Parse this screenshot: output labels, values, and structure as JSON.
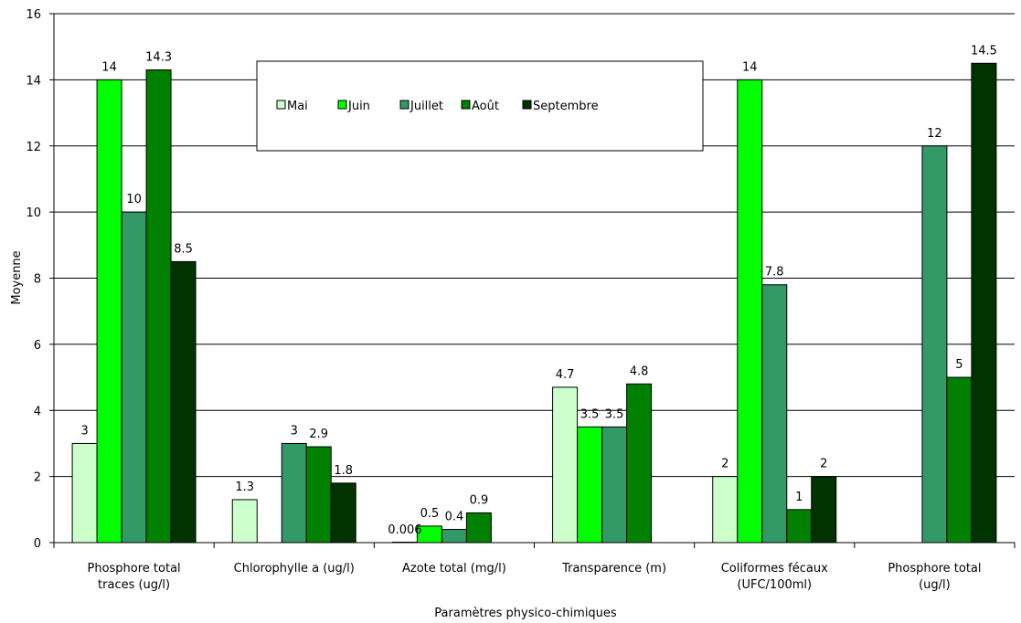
{
  "chart_data": {
    "type": "bar",
    "title": "",
    "xlabel": "Paramètres physico-chimiques",
    "ylabel": "Moyenne",
    "ylim": [
      0,
      16
    ],
    "yticks": [
      "0",
      "2",
      "4",
      "6",
      "8",
      "10",
      "12",
      "14",
      "16"
    ],
    "grid": true,
    "legend_position": "top-center",
    "categories": [
      [
        "Phosphore total",
        "traces (ug/l)"
      ],
      [
        "Chlorophylle a (ug/l)"
      ],
      [
        "Azote total (mg/l)"
      ],
      [
        "Transparence (m)"
      ],
      [
        "Coliformes fécaux",
        "(UFC/100ml)"
      ],
      [
        "Phosphore total",
        "(ug/l)"
      ]
    ],
    "series": [
      {
        "name": "Mai",
        "color": "#ccffcc",
        "values": [
          3,
          1.3,
          0.006,
          4.7,
          2,
          null
        ],
        "labels": [
          "3",
          "1.3",
          "0.006",
          "4.7",
          "2",
          ""
        ]
      },
      {
        "name": "Juin",
        "color": "#00ff00",
        "values": [
          14,
          null,
          0.5,
          3.5,
          14,
          null
        ],
        "labels": [
          "14",
          "",
          "0.5",
          "3.5",
          "14",
          ""
        ]
      },
      {
        "name": "Juillet",
        "color": "#339966",
        "values": [
          10,
          3,
          0.4,
          3.5,
          7.8,
          12
        ],
        "labels": [
          "10",
          "3",
          "0.4",
          "3.5",
          "7.8",
          "12"
        ]
      },
      {
        "name": "Août",
        "color": "#008000",
        "values": [
          14.3,
          2.9,
          0.9,
          4.8,
          1,
          5
        ],
        "labels": [
          "14.3",
          "2.9",
          "0.9",
          "4.8",
          "1",
          "5"
        ]
      },
      {
        "name": "Septembre",
        "color": "#003300",
        "values": [
          8.5,
          1.8,
          null,
          null,
          2,
          14.5
        ],
        "labels": [
          "8.5",
          "1.8",
          "",
          "",
          "2",
          "14.5"
        ]
      }
    ]
  }
}
